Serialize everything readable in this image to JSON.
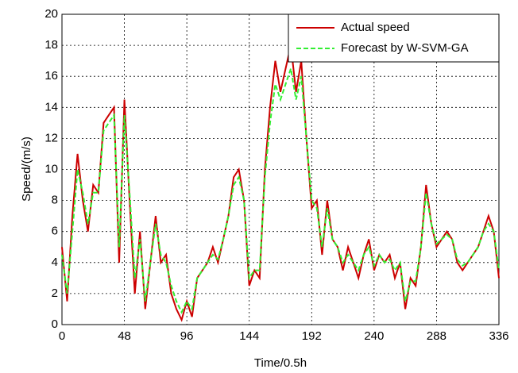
{
  "chart_data": {
    "type": "line",
    "xlabel": "Time/0.5h",
    "ylabel": "Speed/(m/s)",
    "xlim": [
      0,
      336
    ],
    "ylim": [
      0,
      20
    ],
    "xticks": [
      0,
      48,
      96,
      144,
      192,
      240,
      288,
      336
    ],
    "yticks": [
      0,
      2,
      4,
      6,
      8,
      10,
      12,
      14,
      16,
      18,
      20
    ],
    "grid": true,
    "legend": "upper right",
    "x": [
      0,
      4,
      8,
      12,
      16,
      20,
      24,
      28,
      32,
      36,
      40,
      44,
      48,
      52,
      56,
      60,
      64,
      68,
      72,
      76,
      80,
      84,
      88,
      92,
      96,
      100,
      104,
      108,
      112,
      116,
      120,
      124,
      128,
      132,
      136,
      140,
      144,
      148,
      152,
      156,
      160,
      164,
      168,
      172,
      176,
      180,
      184,
      188,
      192,
      196,
      200,
      204,
      208,
      212,
      216,
      220,
      224,
      228,
      232,
      236,
      240,
      244,
      248,
      252,
      256,
      260,
      264,
      268,
      272,
      276,
      280,
      284,
      288,
      292,
      296,
      300,
      304,
      308,
      312,
      316,
      320,
      324,
      328,
      332,
      336
    ],
    "series": [
      {
        "name": "Actual speed",
        "color": "#cc0000",
        "linestyle": "solid",
        "values": [
          5,
          1.5,
          7,
          11,
          8,
          6,
          9,
          8.5,
          13,
          13.5,
          14,
          4,
          14.5,
          8,
          2,
          6,
          1,
          4,
          7,
          4,
          4.5,
          2,
          1,
          0.3,
          1.5,
          0.5,
          3,
          3.5,
          4,
          5,
          4,
          5.5,
          7,
          9.5,
          10,
          8,
          2.5,
          3.5,
          3,
          10,
          14,
          17,
          15,
          16.5,
          18,
          15,
          17,
          12,
          7.5,
          8,
          4.5,
          8,
          5.5,
          5,
          3.5,
          5,
          4,
          3,
          4.5,
          5.5,
          3.5,
          4.5,
          4,
          4.5,
          3,
          4,
          1,
          3,
          2.5,
          5,
          9,
          6.5,
          5,
          5.5,
          6,
          5.5,
          4,
          3.5,
          4,
          4.5,
          5,
          6,
          7,
          6,
          3
        ]
      },
      {
        "name": "Forecast by W-SVM-GA",
        "color": "#33ee33",
        "linestyle": "dashed",
        "values": [
          4.5,
          2,
          6,
          10,
          8.5,
          6.5,
          8.5,
          8.5,
          12.5,
          13,
          13.5,
          5,
          13.5,
          8.5,
          3,
          5.5,
          1.5,
          4,
          6.5,
          4.5,
          4,
          2.5,
          1.5,
          0.8,
          1.5,
          1,
          3,
          3.5,
          4,
          4.5,
          4.2,
          5.5,
          7,
          9,
          9.5,
          8,
          3,
          3.5,
          3.5,
          9.5,
          13,
          15.5,
          14.5,
          15.5,
          16.5,
          14.5,
          16,
          12,
          8,
          7.5,
          5,
          7.5,
          5.5,
          5,
          4,
          4.5,
          4,
          3.5,
          4.5,
          5,
          3.8,
          4.5,
          4,
          4.2,
          3.5,
          4,
          1.5,
          2.8,
          2.8,
          5,
          8.5,
          6.5,
          5.2,
          5.5,
          5.8,
          5.5,
          4.2,
          3.8,
          4,
          4.5,
          5,
          6,
          6.5,
          6,
          3.5
        ]
      }
    ]
  }
}
